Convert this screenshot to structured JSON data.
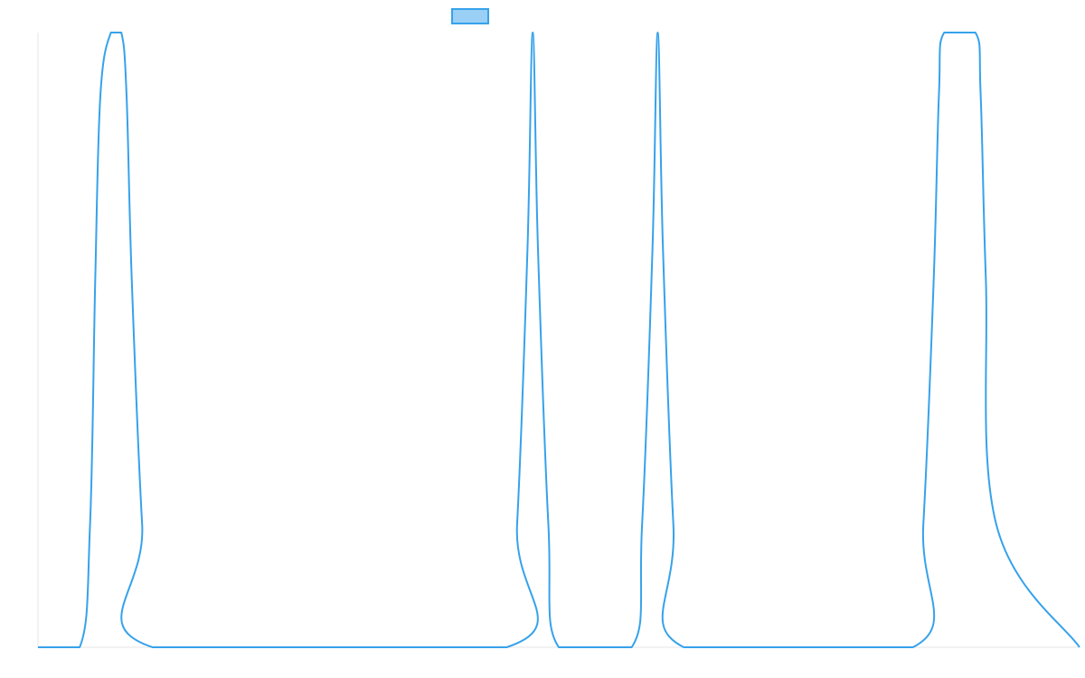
{
  "chart_data": {
    "type": "line",
    "title": "",
    "xlabel": "",
    "ylabel": "",
    "x_range": [
      0,
      100
    ],
    "ylim": [
      0,
      1
    ],
    "grid": false,
    "legend": {
      "position": "top-center",
      "entries": [
        {
          "label": ""
        }
      ]
    },
    "series": [
      {
        "color": "#36a2eb",
        "fill": "#9ad0f5",
        "x": [
          0,
          4,
          5,
          5.5,
          6,
          7,
          8,
          8.5,
          9,
          10,
          11,
          45,
          46,
          47,
          47.5,
          48,
          49,
          50,
          57,
          58,
          59,
          59.5,
          60,
          61,
          62,
          84,
          85,
          86,
          86.5,
          87,
          90,
          90.5,
          91,
          92,
          100
        ],
        "values": [
          0,
          0,
          0.2,
          0.6,
          0.9,
          1,
          1,
          0.9,
          0.6,
          0.2,
          0,
          0,
          0.2,
          0.65,
          1,
          0.65,
          0.2,
          0,
          0,
          0.2,
          0.65,
          1,
          0.65,
          0.2,
          0,
          0,
          0.2,
          0.6,
          0.9,
          1,
          1,
          0.9,
          0.6,
          0.2,
          0
        ]
      }
    ]
  }
}
